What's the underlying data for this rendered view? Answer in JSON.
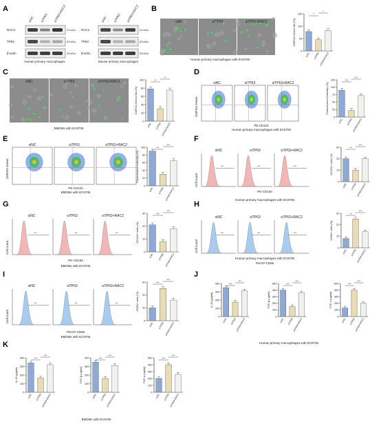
{
  "colors": {
    "sinc": "#8fa9d6",
    "sitp63": "#e8dcb4",
    "sitp63_rac2": "#f1f1ee",
    "facs_red": "#f2b6b6",
    "facs_blue": "#a9cbee",
    "micro_bg": "#8c8c8c",
    "green_cell": "#39e05a"
  },
  "panel_labels": [
    "A",
    "B",
    "C",
    "D",
    "E",
    "F",
    "G",
    "H",
    "I",
    "J",
    "K"
  ],
  "conditions": [
    "siNC",
    "siTP63",
    "siTP63+RAC2"
  ],
  "panel_A": {
    "left": {
      "lanes": [
        "siNC",
        "siTP63",
        "siTP63+RAC2"
      ],
      "rows": [
        "RAC2",
        "TP63",
        "β-actin"
      ],
      "sizes": [
        "21 kDa",
        "63 kDa",
        "43 kDa"
      ],
      "caption": "Human primary\nmacrophages"
    },
    "right": {
      "lanes": [
        "siNC",
        "siTP63",
        "siTP63+RAC2"
      ],
      "rows": [
        "RAC2",
        "TP63",
        "β-actin"
      ],
      "sizes": [
        "21 kDa",
        "63 kDa",
        "43 kDa"
      ],
      "caption": "Mouse primary\nmacrophages"
    }
  },
  "panel_B": {
    "caption": "Human primary macrophages with EC9706"
  },
  "panel_C": {
    "caption": "BMDMs with EC9706"
  },
  "panel_D": {
    "y_label": "CMFDA Green",
    "x_label": "PE-CD11b",
    "caption": "Human primary macrophages with EC9706"
  },
  "panel_E": {
    "y_label": "CMFDA Green",
    "x_label": "PE-CD11b",
    "caption": "BMDMs with EC9706"
  },
  "panel_F": {
    "y_label": "Cell count",
    "x_label": "PE-CD163",
    "caption": "Human primary macrophages with EC9706",
    "gate": "***"
  },
  "panel_G": {
    "y_label": "Cell count",
    "x_label": "PE-CD163",
    "caption": "BMDMs with EC9706",
    "gate": "***"
  },
  "panel_H": {
    "y_label": "Cell count",
    "x_label": "PerCP-CD86",
    "caption": "Human primary macrophages with EC9706",
    "gate": "***"
  },
  "panel_I": {
    "y_label": "Cell count",
    "x_label": "PerCP-CD86",
    "caption": "BMDMs with EC9706",
    "gate": "***"
  },
  "panel_J": {
    "caption": "Human primary macrophages with EC9706"
  },
  "panel_K": {
    "caption": "BMDMs with EC9706"
  },
  "chart_data": [
    {
      "id": "B",
      "type": "bar",
      "categories": [
        "siNC",
        "siTP63",
        "siTP63+RAC2"
      ],
      "values": [
        78,
        45,
        82
      ],
      "ylabel": "CMFDA Green Mø (%)",
      "ylim": [
        0,
        150
      ],
      "yticks": [
        "0",
        "50",
        "100",
        "150"
      ],
      "sig": [
        "*",
        "*"
      ]
    },
    {
      "id": "C",
      "type": "bar",
      "categories": [
        "siNC",
        "siTP63",
        "siTP63+RAC2"
      ],
      "values": [
        78,
        30,
        75
      ],
      "ylabel": "CMFDA Green Mø (%)",
      "ylim": [
        0,
        100
      ],
      "yticks": [
        "0",
        "20",
        "40",
        "60",
        "80",
        "100"
      ],
      "sig": [
        "**",
        "**"
      ]
    },
    {
      "id": "D",
      "type": "bar",
      "categories": [
        "siNC",
        "siTP63",
        "siTP63+RAC2"
      ],
      "values": [
        90,
        22,
        72
      ],
      "ylabel": "Fluorescence intensity (%)",
      "ylim": [
        0,
        125
      ],
      "yticks": [
        "0",
        "25",
        "50",
        "75",
        "100",
        "125"
      ],
      "sig": [
        "***",
        "***"
      ]
    },
    {
      "id": "E",
      "type": "bar",
      "categories": [
        "siNC",
        "siTP63",
        "siTP63+RAC2"
      ],
      "values": [
        90,
        30,
        65
      ],
      "ylabel": "Fluorescence intensity (%)",
      "ylim": [
        0,
        100
      ],
      "yticks": [
        "0",
        "20",
        "40",
        "60",
        "80",
        "100"
      ],
      "sig": [
        "***",
        "***"
      ]
    },
    {
      "id": "F",
      "type": "bar",
      "categories": [
        "siNC",
        "siTP63",
        "siTP63+RAC2"
      ],
      "values": [
        20,
        10,
        20
      ],
      "ylabel": "CD163+ cells (%)",
      "ylim": [
        0,
        30
      ],
      "yticks": [
        "0",
        "10",
        "20",
        "30"
      ],
      "sig": [
        "**",
        "***"
      ]
    },
    {
      "id": "G",
      "type": "bar",
      "categories": [
        "siNC",
        "siTP63",
        "siTP63+RAC2"
      ],
      "values": [
        21,
        8,
        18
      ],
      "ylabel": "CD163+ cells (%)",
      "ylim": [
        0,
        30
      ],
      "yticks": [
        "0",
        "10",
        "20",
        "30"
      ],
      "sig": [
        "***",
        "***"
      ]
    },
    {
      "id": "H",
      "type": "bar",
      "categories": [
        "siNC",
        "siTP63",
        "siTP63+RAC2"
      ],
      "values": [
        8,
        25,
        14
      ],
      "ylabel": "CD86+ cells (%)",
      "ylim": [
        0,
        30
      ],
      "yticks": [
        "0",
        "10",
        "20",
        "30"
      ],
      "sig": [
        "**",
        "***"
      ]
    },
    {
      "id": "I",
      "type": "bar",
      "categories": [
        "siNC",
        "siTP63",
        "siTP63+RAC2"
      ],
      "values": [
        10,
        25,
        16
      ],
      "ylabel": "CD86+ cells (%)",
      "ylim": [
        0,
        30
      ],
      "yticks": [
        "0",
        "10",
        "20",
        "30"
      ],
      "sig": [
        "***",
        "***"
      ]
    },
    {
      "id": "J1",
      "type": "bar",
      "categories": [
        "siNC",
        "siTP63",
        "siTP63+RAC2"
      ],
      "values": [
        350,
        175,
        310
      ],
      "ylabel": "IL-10 (pg/ml)",
      "ylim": [
        0,
        400
      ],
      "yticks": [
        "0",
        "100",
        "200",
        "300",
        "400"
      ],
      "sig": [
        "***",
        "***"
      ]
    },
    {
      "id": "J2",
      "type": "bar",
      "categories": [
        "siNC",
        "siTP63",
        "siTP63+RAC2"
      ],
      "values": [
        400,
        150,
        360
      ],
      "ylabel": "TGF-β (ng/ml)",
      "ylim": [
        0,
        500
      ],
      "yticks": [
        "0",
        "100",
        "200",
        "300",
        "400",
        "500"
      ],
      "sig": [
        "***",
        "***"
      ]
    },
    {
      "id": "J3",
      "type": "bar",
      "categories": [
        "siNC",
        "siTP63",
        "siTP63+RAC2"
      ],
      "values": [
        130,
        400,
        200
      ],
      "ylabel": "TNF-α (ng/ml)",
      "ylim": [
        0,
        500
      ],
      "yticks": [
        "0",
        "100",
        "200",
        "300",
        "400",
        "500"
      ],
      "sig": [
        "***",
        "***"
      ]
    },
    {
      "id": "K1",
      "type": "bar",
      "categories": [
        "siNC",
        "siTP63",
        "siTP63+RAC2"
      ],
      "values": [
        340,
        165,
        320
      ],
      "ylabel": "IL-10 (pg/ml)",
      "ylim": [
        0,
        400
      ],
      "yticks": [
        "0",
        "100",
        "200",
        "300",
        "400"
      ],
      "sig": [
        "***",
        "***"
      ]
    },
    {
      "id": "K2",
      "type": "bar",
      "categories": [
        "siNC",
        "siTP63",
        "siTP63+RAC2"
      ],
      "values": [
        350,
        160,
        310
      ],
      "ylabel": "TGF-β (ng/ml)",
      "ylim": [
        0,
        400
      ],
      "yticks": [
        "0",
        "100",
        "200",
        "300",
        "400"
      ],
      "sig": [
        "***",
        "***"
      ]
    },
    {
      "id": "K3",
      "type": "bar",
      "categories": [
        "siNC",
        "siTP63",
        "siTP63+RAC2"
      ],
      "values": [
        200,
        400,
        260
      ],
      "ylabel": "TNF-α (ng/ml)",
      "ylim": [
        0,
        500
      ],
      "yticks": [
        "0",
        "100",
        "200",
        "300",
        "400",
        "500"
      ],
      "sig": [
        "***",
        "***"
      ]
    }
  ]
}
